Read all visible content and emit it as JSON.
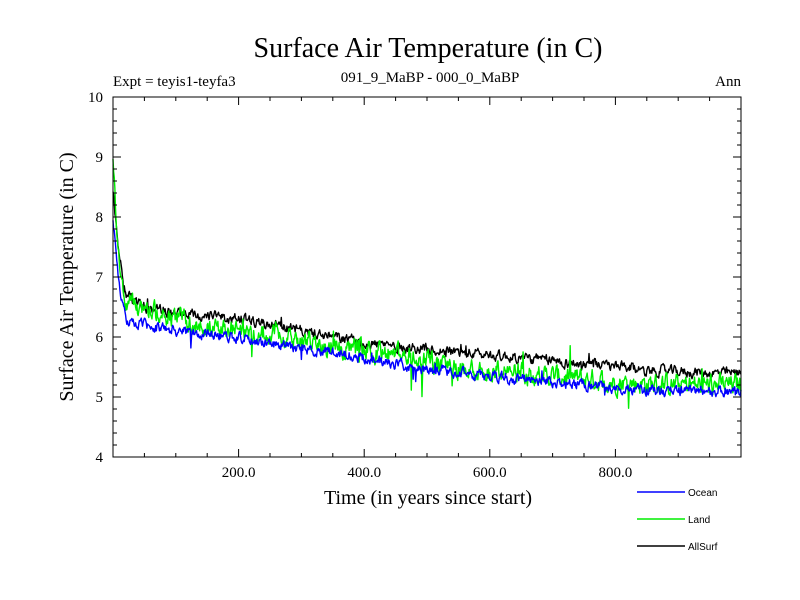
{
  "chart_data": {
    "type": "line",
    "title": "Surface Air Temperature (in C)",
    "subtitle_left": "Expt = teyis1-teyfa3",
    "subtitle_center": "091_9_MaBP - 000_0_MaBP",
    "subtitle_right": "Ann",
    "xlabel": "Time (in years since start)",
    "ylabel": "Surface Air Temperature (in C)",
    "xlim": [
      0,
      1000
    ],
    "ylim": [
      4,
      10
    ],
    "x_ticks": [
      200,
      400,
      600,
      800
    ],
    "x_tick_labels": [
      "200.0",
      "400.0",
      "600.0",
      "800.0"
    ],
    "y_ticks": [
      4,
      5,
      6,
      7,
      8,
      9,
      10
    ],
    "y_tick_labels": [
      "4",
      "5",
      "6",
      "7",
      "8",
      "9",
      "10"
    ],
    "grid": false,
    "legend_position": "bottom-right",
    "series": [
      {
        "name": "Ocean",
        "color": "#0000ff",
        "anchors": [
          [
            0,
            8.0
          ],
          [
            5,
            7.4
          ],
          [
            10,
            6.9
          ],
          [
            15,
            6.5
          ],
          [
            20,
            6.3
          ],
          [
            30,
            6.2
          ],
          [
            50,
            6.2
          ],
          [
            75,
            6.15
          ],
          [
            100,
            6.1
          ],
          [
            150,
            6.05
          ],
          [
            200,
            6.0
          ],
          [
            250,
            5.9
          ],
          [
            300,
            5.8
          ],
          [
            350,
            5.75
          ],
          [
            400,
            5.65
          ],
          [
            450,
            5.55
          ],
          [
            500,
            5.45
          ],
          [
            550,
            5.4
          ],
          [
            600,
            5.35
          ],
          [
            650,
            5.3
          ],
          [
            700,
            5.25
          ],
          [
            750,
            5.2
          ],
          [
            800,
            5.15
          ],
          [
            850,
            5.12
          ],
          [
            900,
            5.1
          ],
          [
            950,
            5.1
          ],
          [
            1000,
            5.1
          ]
        ],
        "noise": 0.07
      },
      {
        "name": "Land",
        "color": "#00ee00",
        "anchors": [
          [
            0,
            9.0
          ],
          [
            5,
            8.0
          ],
          [
            10,
            7.3
          ],
          [
            15,
            6.8
          ],
          [
            20,
            6.6
          ],
          [
            30,
            6.5
          ],
          [
            50,
            6.45
          ],
          [
            75,
            6.35
          ],
          [
            100,
            6.3
          ],
          [
            150,
            6.2
          ],
          [
            200,
            6.15
          ],
          [
            250,
            6.05
          ],
          [
            300,
            5.95
          ],
          [
            350,
            5.85
          ],
          [
            400,
            5.75
          ],
          [
            450,
            5.7
          ],
          [
            500,
            5.6
          ],
          [
            550,
            5.5
          ],
          [
            600,
            5.45
          ],
          [
            650,
            5.4
          ],
          [
            700,
            5.35
          ],
          [
            750,
            5.3
          ],
          [
            800,
            5.25
          ],
          [
            850,
            5.22
          ],
          [
            900,
            5.2
          ],
          [
            950,
            5.2
          ],
          [
            1000,
            5.2
          ]
        ],
        "noise": 0.14
      },
      {
        "name": "AllSurf",
        "color": "#000000",
        "anchors": [
          [
            0,
            8.4
          ],
          [
            5,
            7.9
          ],
          [
            10,
            7.4
          ],
          [
            15,
            7.0
          ],
          [
            20,
            6.75
          ],
          [
            30,
            6.6
          ],
          [
            50,
            6.5
          ],
          [
            75,
            6.45
          ],
          [
            100,
            6.4
          ],
          [
            150,
            6.35
          ],
          [
            200,
            6.3
          ],
          [
            250,
            6.2
          ],
          [
            300,
            6.1
          ],
          [
            350,
            6.0
          ],
          [
            400,
            5.9
          ],
          [
            450,
            5.85
          ],
          [
            500,
            5.8
          ],
          [
            550,
            5.75
          ],
          [
            600,
            5.7
          ],
          [
            650,
            5.65
          ],
          [
            700,
            5.6
          ],
          [
            750,
            5.55
          ],
          [
            800,
            5.5
          ],
          [
            850,
            5.45
          ],
          [
            900,
            5.42
          ],
          [
            950,
            5.4
          ],
          [
            1000,
            5.4
          ]
        ],
        "noise": 0.07
      }
    ]
  }
}
